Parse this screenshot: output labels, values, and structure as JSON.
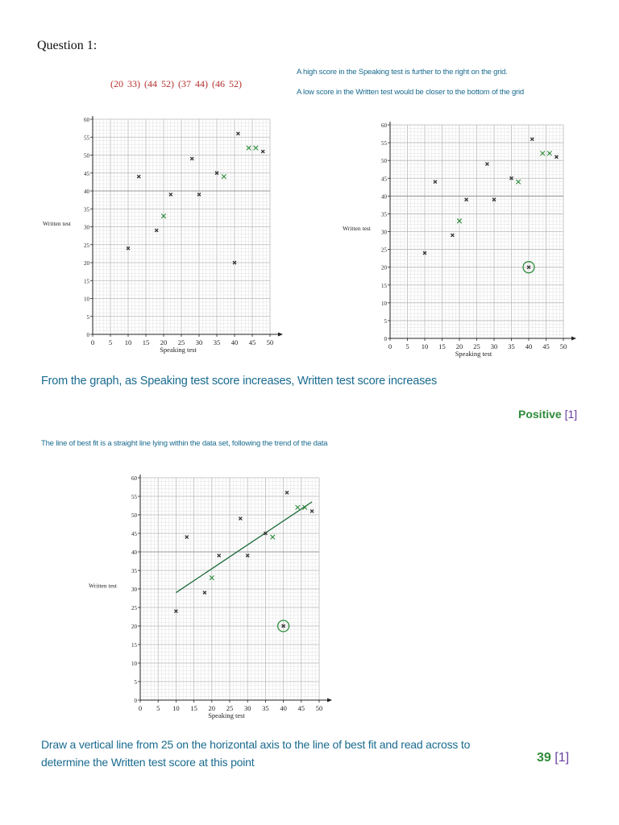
{
  "question_title": "Question 1:",
  "handwritten_points": "(20 33) (44 52) (37 44) (46 52)",
  "note_speaking_right": "A high score in the Speaking test is further to the right on the grid.",
  "note_written_bottom": "A low score in the Written test would be closer to the bottom of the grid",
  "conclusion": "From the graph, as Speaking test score increases, Written test score increases",
  "answer1": {
    "value": "Positive",
    "mark": "[1]"
  },
  "best_fit_note": "The line of best fit is a straight line lying within the data set, following the trend of the data",
  "final_instruction_line1": "Draw a vertical line from 25 on the horizontal axis to the line of best fit and read across to",
  "final_instruction_line2": "determine the Written test score at this point",
  "answer2": {
    "value": "39",
    "mark": "[1]"
  },
  "colors": {
    "teal": "#1a6b8f",
    "green": "#2e8b3a",
    "purple": "#6a3fa0",
    "handwriting": "#b5302f",
    "ink": "#333333"
  },
  "chart_data": [
    {
      "type": "scatter",
      "xlabel": "Speaking test",
      "ylabel": "Written test",
      "xlim": [
        0,
        50
      ],
      "ylim": [
        0,
        60
      ],
      "xticks": [
        0,
        5,
        10,
        15,
        20,
        25,
        30,
        35,
        40,
        45,
        50
      ],
      "yticks": [
        0,
        5,
        10,
        15,
        20,
        25,
        30,
        35,
        40,
        45,
        50,
        55,
        60
      ],
      "grid": true,
      "series": [
        {
          "values": [
            [
              10,
              24
            ],
            [
              13,
              44
            ],
            [
              18,
              29
            ],
            [
              22,
              39
            ],
            [
              28,
              49
            ],
            [
              30,
              39
            ],
            [
              35,
              45
            ],
            [
              40,
              20
            ],
            [
              41,
              56
            ],
            [
              48,
              51
            ]
          ]
        },
        {
          "values": [
            [
              20,
              33
            ],
            [
              37,
              44
            ],
            [
              44,
              52
            ],
            [
              46,
              52
            ]
          ]
        }
      ]
    },
    {
      "type": "scatter",
      "xlabel": "Speaking test",
      "ylabel": "Written test",
      "xlim": [
        0,
        50
      ],
      "ylim": [
        0,
        60
      ],
      "xticks": [
        0,
        5,
        10,
        15,
        20,
        25,
        30,
        35,
        40,
        45,
        50
      ],
      "yticks": [
        0,
        5,
        10,
        15,
        20,
        25,
        30,
        35,
        40,
        45,
        50,
        55,
        60
      ],
      "grid": true,
      "series": [
        {
          "values": [
            [
              10,
              24
            ],
            [
              13,
              44
            ],
            [
              18,
              29
            ],
            [
              22,
              39
            ],
            [
              28,
              49
            ],
            [
              30,
              39
            ],
            [
              35,
              45
            ],
            [
              40,
              20
            ],
            [
              41,
              56
            ],
            [
              48,
              51
            ]
          ]
        },
        {
          "values": [
            [
              20,
              33
            ],
            [
              37,
              44
            ],
            [
              44,
              52
            ],
            [
              46,
              52
            ]
          ]
        }
      ],
      "circled_point": [
        40,
        20
      ]
    },
    {
      "type": "scatter",
      "xlabel": "Speaking test",
      "ylabel": "Written test",
      "xlim": [
        0,
        50
      ],
      "ylim": [
        0,
        60
      ],
      "xticks": [
        0,
        5,
        10,
        15,
        20,
        25,
        30,
        35,
        40,
        45,
        50
      ],
      "yticks": [
        0,
        5,
        10,
        15,
        20,
        25,
        30,
        35,
        40,
        45,
        50,
        55,
        60
      ],
      "grid": true,
      "series": [
        {
          "values": [
            [
              10,
              24
            ],
            [
              13,
              44
            ],
            [
              18,
              29
            ],
            [
              22,
              39
            ],
            [
              28,
              49
            ],
            [
              30,
              39
            ],
            [
              35,
              45
            ],
            [
              40,
              20
            ],
            [
              41,
              56
            ],
            [
              48,
              51
            ]
          ]
        },
        {
          "values": [
            [
              20,
              33
            ],
            [
              37,
              44
            ],
            [
              44,
              52
            ],
            [
              46,
              52
            ]
          ]
        }
      ],
      "circled_point": [
        40,
        20
      ],
      "best_fit_line": [
        [
          10,
          29
        ],
        [
          48,
          53.5
        ]
      ]
    }
  ]
}
